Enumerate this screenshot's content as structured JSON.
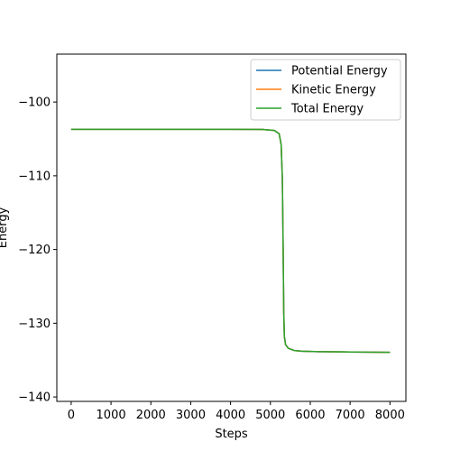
{
  "chart_data": {
    "type": "line",
    "title": "",
    "xlabel": "Steps",
    "ylabel": "Energy",
    "xlim": [
      -360,
      8400
    ],
    "ylim": [
      -140.6,
      -93.5
    ],
    "xticks": [
      0,
      1000,
      2000,
      3000,
      4000,
      5000,
      6000,
      7000,
      8000
    ],
    "xtick_labels": [
      "0",
      "1000",
      "2000",
      "3000",
      "4000",
      "5000",
      "6000",
      "7000",
      "8000"
    ],
    "yticks": [
      -100,
      -110,
      -120,
      -130,
      -140
    ],
    "ytick_labels": [
      "−100",
      "−110",
      "−120",
      "−130",
      "−140"
    ],
    "grid": false,
    "legend_position": "top-right",
    "series": [
      {
        "name": "Potential Energy",
        "color": "#1f77b4",
        "x": [
          0,
          1000,
          2000,
          3000,
          4000,
          4800,
          5100,
          5220,
          5270,
          5300,
          5320,
          5335,
          5350,
          5380,
          5450,
          5600,
          5800,
          6200,
          7000,
          8000
        ],
        "y": [
          -103.7,
          -103.7,
          -103.7,
          -103.7,
          -103.7,
          -103.72,
          -103.85,
          -104.3,
          -105.8,
          -110.5,
          -120.0,
          -128.5,
          -131.8,
          -132.9,
          -133.4,
          -133.7,
          -133.8,
          -133.85,
          -133.9,
          -133.95
        ]
      },
      {
        "name": "Kinetic Energy",
        "color": "#ff7f0e",
        "x": [
          0,
          1000,
          2000,
          3000,
          4000,
          4800,
          5100,
          5220,
          5270,
          5300,
          5320,
          5335,
          5350,
          5380,
          5450,
          5600,
          5800,
          6200,
          7000,
          8000
        ],
        "y": [
          -103.7,
          -103.7,
          -103.7,
          -103.7,
          -103.7,
          -103.72,
          -103.85,
          -104.3,
          -105.8,
          -110.5,
          -120.0,
          -128.5,
          -131.8,
          -132.9,
          -133.4,
          -133.7,
          -133.8,
          -133.85,
          -133.9,
          -133.95
        ]
      },
      {
        "name": "Total Energy",
        "color": "#2ca02c",
        "x": [
          0,
          1000,
          2000,
          3000,
          4000,
          4800,
          5100,
          5220,
          5270,
          5300,
          5320,
          5335,
          5350,
          5380,
          5450,
          5600,
          5800,
          6200,
          7000,
          8000
        ],
        "y": [
          -103.7,
          -103.7,
          -103.7,
          -103.7,
          -103.7,
          -103.72,
          -103.85,
          -104.3,
          -105.8,
          -110.5,
          -120.0,
          -128.5,
          -131.8,
          -132.9,
          -133.4,
          -133.7,
          -133.8,
          -133.85,
          -133.9,
          -133.95
        ]
      }
    ]
  }
}
